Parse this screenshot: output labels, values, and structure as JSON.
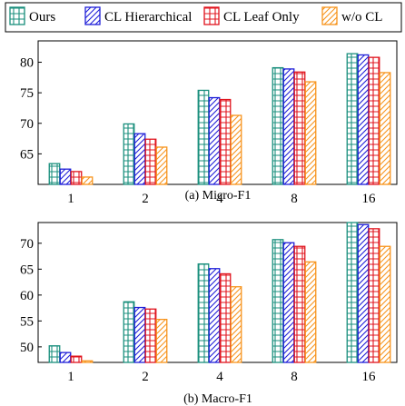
{
  "legend": [
    {
      "name": "Ours",
      "color": "#1a8f7d",
      "pattern": "grid"
    },
    {
      "name": "CL Hierarchical",
      "color": "#1f1fd8",
      "pattern": "diag"
    },
    {
      "name": "CL Leaf Only",
      "color": "#e0141e",
      "pattern": "grid"
    },
    {
      "name": "w/o CL",
      "color": "#f7941d",
      "pattern": "diag"
    }
  ],
  "chart_data": [
    {
      "type": "bar",
      "title": "(a) Micro-F1",
      "categories": [
        "1",
        "2",
        "4",
        "8",
        "16"
      ],
      "ylim": [
        60,
        83.5
      ],
      "yticks": [
        65,
        70,
        75,
        80
      ],
      "grid": false,
      "legend_position": "top",
      "series": [
        {
          "name": "Ours",
          "values": [
            63.4,
            69.9,
            75.4,
            79.1,
            81.4
          ]
        },
        {
          "name": "CL Hierarchical",
          "values": [
            62.5,
            68.3,
            74.2,
            78.9,
            81.2
          ]
        },
        {
          "name": "CL Leaf Only",
          "values": [
            62.1,
            67.4,
            73.9,
            78.4,
            80.8
          ]
        },
        {
          "name": "w/o CL",
          "values": [
            61.2,
            66.1,
            71.3,
            76.8,
            78.3
          ]
        }
      ]
    },
    {
      "type": "bar",
      "title": "(b) Macro-F1",
      "categories": [
        "1",
        "2",
        "4",
        "8",
        "16"
      ],
      "ylim": [
        47,
        74
      ],
      "yticks": [
        50,
        55,
        60,
        65,
        70
      ],
      "grid": false,
      "legend_position": "top",
      "series": [
        {
          "name": "Ours",
          "values": [
            50.2,
            58.7,
            66.0,
            70.7,
            74.0
          ]
        },
        {
          "name": "CL Hierarchical",
          "values": [
            48.9,
            57.6,
            65.1,
            70.1,
            73.6
          ]
        },
        {
          "name": "CL Leaf Only",
          "values": [
            48.2,
            57.3,
            64.1,
            69.4,
            72.8
          ]
        },
        {
          "name": "w/o CL",
          "values": [
            47.3,
            55.3,
            61.6,
            66.4,
            69.4
          ]
        }
      ]
    }
  ]
}
